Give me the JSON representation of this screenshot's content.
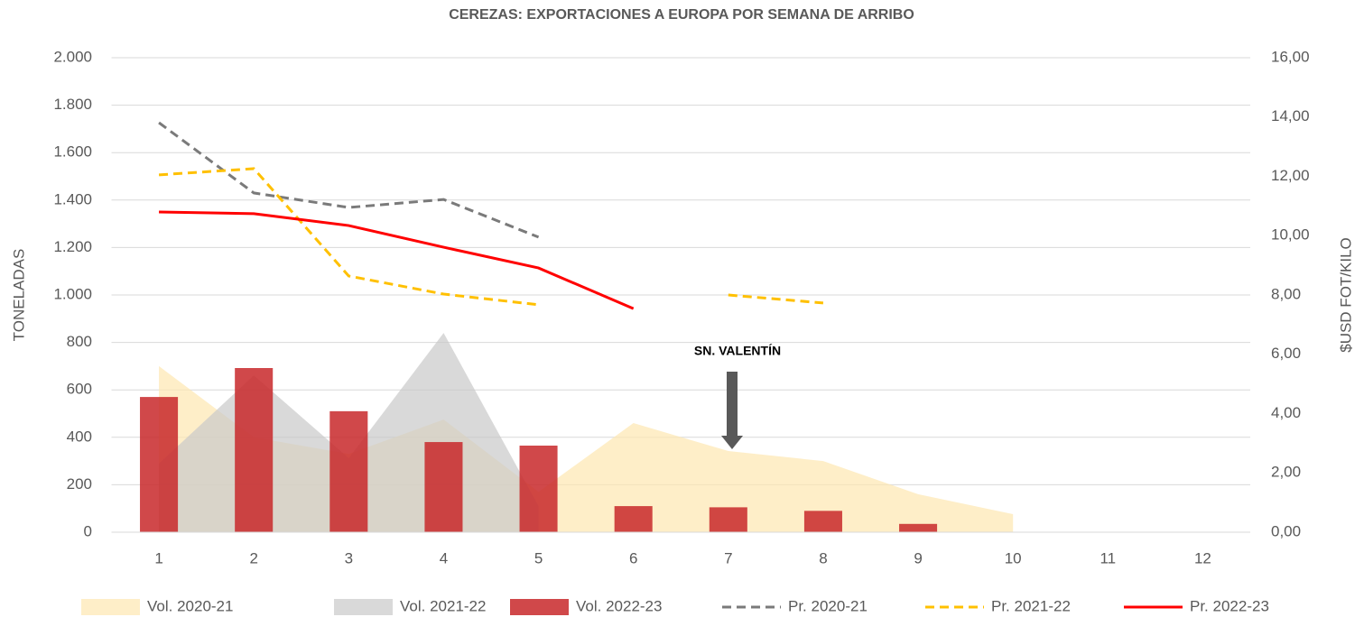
{
  "chart_data": {
    "type": "combo",
    "title": "CEREZAS: EXPORTACIONES A EUROPA POR SEMANA DE ARRIBO",
    "y_label": "TONELADAS",
    "y2_label": "$USD FOT/KILO",
    "annotation": "SN. VALENTÍN",
    "categories": [
      "1",
      "2",
      "3",
      "4",
      "5",
      "6",
      "7",
      "8",
      "9",
      "10",
      "11",
      "12"
    ],
    "ylim": [
      0,
      2000
    ],
    "yticks": [
      0,
      200,
      400,
      600,
      800,
      {
        "value": 1000,
        "label": "1.000"
      },
      {
        "value": 1200,
        "label": "1.200"
      },
      {
        "value": 1400,
        "label": "1.400"
      },
      {
        "value": 1600,
        "label": "1.600"
      },
      {
        "value": 1800,
        "label": "1.800"
      },
      {
        "value": 2000,
        "label": "2.000"
      }
    ],
    "y2lim": [
      0,
      16
    ],
    "y2ticks": [
      {
        "value": 0,
        "label": "0,00"
      },
      {
        "value": 2,
        "label": "2,00"
      },
      {
        "value": 4,
        "label": "4,00"
      },
      {
        "value": 6,
        "label": "6,00"
      },
      {
        "value": 8,
        "label": "8,00"
      },
      {
        "value": 10,
        "label": "10,00"
      },
      {
        "value": 12,
        "label": "12,00"
      },
      {
        "value": 14,
        "label": "14,00"
      },
      {
        "value": 16,
        "label": "16,00"
      }
    ],
    "grid": true,
    "legend": "bottom",
    "series": [
      {
        "name": "Vol. 2020-21",
        "type": "area",
        "color": "#fde7b0",
        "values": [
          700,
          400,
          330,
          475,
          170,
          460,
          342,
          300,
          160,
          76,
          null,
          null
        ]
      },
      {
        "name": "Vol. 2021-22",
        "type": "area",
        "color": "#c9c9c9",
        "values": [
          289,
          661,
          312,
          840,
          110,
          null,
          null,
          null,
          null,
          null,
          null,
          null
        ]
      },
      {
        "name": "Vol. 2022-23",
        "type": "bar",
        "color": "#c8282a",
        "values": [
          570,
          692,
          510,
          380,
          365,
          110,
          105,
          90,
          35,
          null,
          null,
          null
        ]
      },
      {
        "name": "Pr. 2020-21",
        "type": "line",
        "dash": true,
        "axis": "y2",
        "color": "#7a7a7a",
        "values": [
          13.81,
          11.44,
          10.95,
          11.22,
          9.95,
          null,
          null,
          null,
          null,
          null,
          null,
          null
        ]
      },
      {
        "name": "Pr. 2021-22",
        "type": "line",
        "dash": true,
        "axis": "y2",
        "color": "#ffc000",
        "values": [
          12.05,
          12.26,
          8.64,
          8.03,
          7.67,
          null,
          8.0,
          7.73,
          null,
          null,
          null,
          null
        ]
      },
      {
        "name": "Pr. 2022-23",
        "type": "line",
        "dash": false,
        "axis": "y2",
        "color": "#ff0000",
        "values": [
          10.8,
          10.74,
          10.34,
          9.61,
          8.91,
          7.54,
          null,
          null,
          null,
          null,
          null,
          null
        ]
      }
    ]
  }
}
